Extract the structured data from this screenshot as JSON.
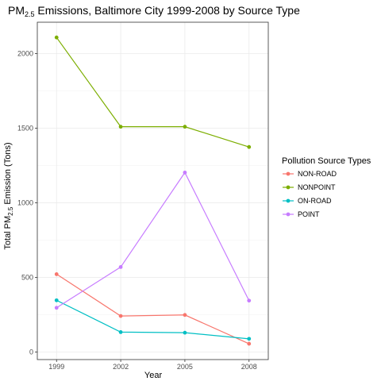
{
  "chart_data": {
    "type": "line",
    "title": "PM",
    "title_subscript": "2.5",
    "title_rest": " Emissions, Baltimore City 1999-2008 by Source Type",
    "xlabel": "Year",
    "ylabel": "Total PM",
    "ylabel_subscript": "2.5",
    "ylabel_rest": " Emission (Tons)",
    "x": [
      1999,
      2002,
      2005,
      2008
    ],
    "x_tick_labels": [
      "1999",
      "2002",
      "2005",
      "2008"
    ],
    "y_ticks": [
      0,
      500,
      1000,
      1500,
      2000
    ],
    "y_tick_labels": [
      "0",
      "500",
      "1000",
      "1500",
      "2000"
    ],
    "ylim": [
      -50,
      2210
    ],
    "grid": true,
    "legend": {
      "title": "Pollution Source Types",
      "placement": "right"
    },
    "series": [
      {
        "name": "NON-ROAD",
        "color": "#F8766D",
        "values": [
          522,
          242,
          249,
          56
        ]
      },
      {
        "name": "NONPOINT",
        "color": "#7CAE00",
        "values": [
          2108,
          1510,
          1510,
          1374
        ]
      },
      {
        "name": "ON-ROAD",
        "color": "#00BFC4",
        "values": [
          347,
          134,
          130,
          89
        ]
      },
      {
        "name": "POINT",
        "color": "#C77CFF",
        "values": [
          297,
          570,
          1203,
          345
        ]
      }
    ]
  }
}
